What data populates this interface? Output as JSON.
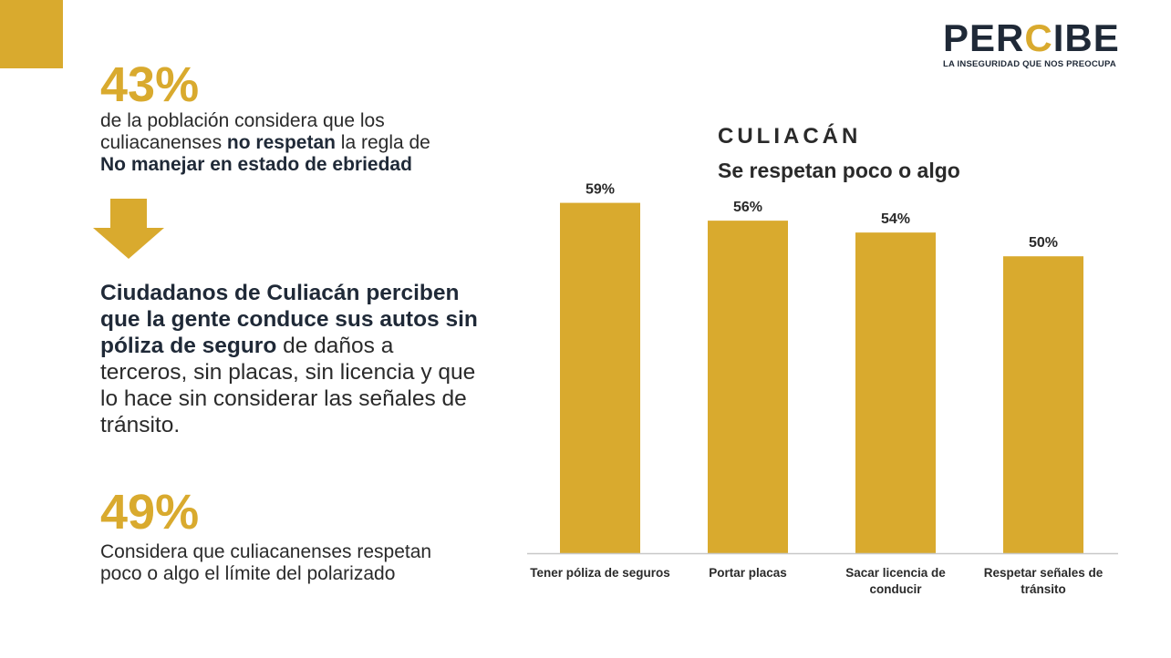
{
  "logo": {
    "word_a": "PER",
    "word_c": "C",
    "word_b": "IBE",
    "tagline": "LA INSEGURIDAD QUE NOS PREOCUPA"
  },
  "stat1": {
    "value": "43%",
    "line1": "de la población considera que los",
    "line2_pre": "culiacanenses ",
    "line2_bold": "no respetan",
    "line2_post": " la regla de",
    "line3_bold": "No manejar en estado de ebriedad"
  },
  "lead": {
    "bold": "Ciudadanos de Culiacán perciben que la gente conduce sus autos sin póliza de seguro",
    "rest": " de daños a terceros, sin placas, sin licencia y que lo hace sin considerar las señales de tránsito."
  },
  "stat2": {
    "value": "49%",
    "line1": "Considera que culiacanenses respetan",
    "line2": "poco o algo el límite del polarizado"
  },
  "colors": {
    "accent": "#d9aa2e",
    "dark": "#1f2937"
  },
  "chart_data": {
    "type": "bar",
    "title": "CULIACÁN",
    "subtitle": "Se respetan poco o algo",
    "categories": [
      [
        "Tener póliza de seguros"
      ],
      [
        "Portar placas"
      ],
      [
        "Sacar licencia de",
        "conducir"
      ],
      [
        "Respetar señales de",
        "tránsito"
      ]
    ],
    "values": [
      59,
      56,
      54,
      50
    ],
    "value_labels": [
      "59%",
      "56%",
      "54%",
      "50%"
    ],
    "ylim": [
      0,
      64
    ],
    "xlabel": "",
    "ylabel": "",
    "grid": false,
    "legend": "none"
  }
}
